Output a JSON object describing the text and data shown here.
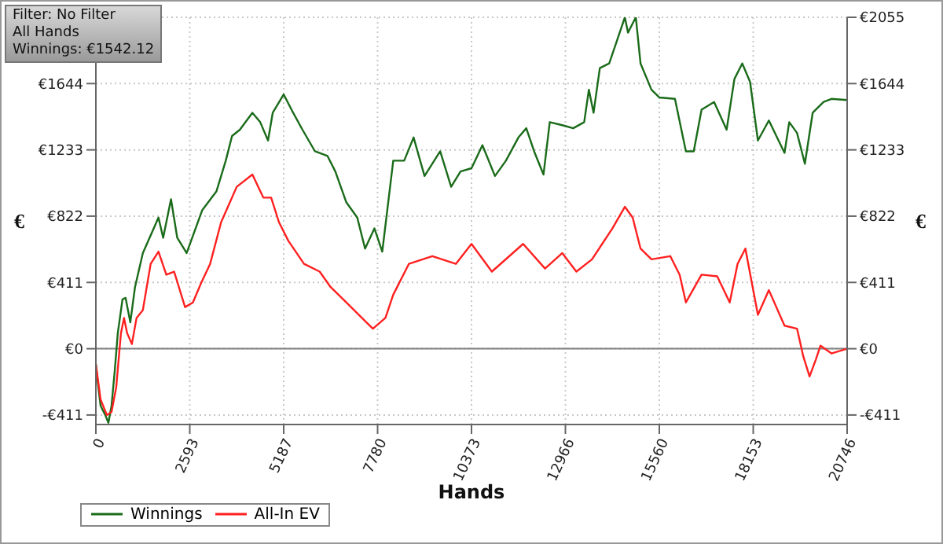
{
  "chart_data": {
    "type": "line",
    "xlabel": "Hands",
    "ylabel": "€",
    "y2label": "€",
    "annotations": [
      "Filter: No Filter",
      "All Hands",
      "Winnings: €1542.12"
    ],
    "xlim": [
      0,
      20746
    ],
    "xticks": [
      0,
      2593,
      5187,
      7780,
      10373,
      12966,
      15560,
      18153,
      20746
    ],
    "ylim": [
      -470,
      2055
    ],
    "yticks": [
      {
        "value": -411,
        "label": "-€411"
      },
      {
        "value": 0,
        "label": "€0"
      },
      {
        "value": 411,
        "label": "€411"
      },
      {
        "value": 822,
        "label": "€822"
      },
      {
        "value": 1233,
        "label": "€1233"
      },
      {
        "value": 1644,
        "label": "€1644"
      },
      {
        "value": 2055,
        "label": null
      }
    ],
    "y2lim": [
      -470,
      2055
    ],
    "y2ticks": [
      {
        "value": -411,
        "label": "-€411"
      },
      {
        "value": 0,
        "label": "€0"
      },
      {
        "value": 411,
        "label": "€411"
      },
      {
        "value": 822,
        "label": "€822"
      },
      {
        "value": 1233,
        "label": "€1233"
      },
      {
        "value": 1644,
        "label": "€1644"
      },
      {
        "value": 2055,
        "label": "€2055"
      }
    ],
    "grid": true,
    "legend": "bottom left",
    "marker": "none",
    "line_style": "solid",
    "ref_lines": [
      {
        "axis": "y",
        "value": 0,
        "color": "#808080"
      }
    ],
    "series": [
      {
        "name": "Winnings",
        "color": "#1a6b1a",
        "x": [
          0,
          43,
          130,
          259,
          346,
          432,
          519,
          605,
          735,
          821,
          951,
          1081,
          1297,
          1729,
          1858,
          2075,
          2247,
          2507,
          2939,
          3328,
          3587,
          3760,
          3976,
          4322,
          4538,
          4754,
          4884,
          5186,
          5403,
          5705,
          6051,
          6397,
          6613,
          6915,
          7218,
          7434,
          7693,
          7909,
          8212,
          8514,
          8774,
          9076,
          9508,
          9811,
          10070,
          10373,
          10675,
          11021,
          11324,
          11669,
          11886,
          12102,
          12361,
          12534,
          12880,
          13182,
          13485,
          13614,
          13744,
          13917,
          14176,
          14392,
          14608,
          14695,
          14911,
          15041,
          15343,
          15559,
          15991,
          16294,
          16510,
          16726,
          17072,
          17418,
          17634,
          17850,
          18066,
          18282,
          18585,
          19017,
          19147,
          19363,
          19579,
          19795,
          20097,
          20313,
          20746
        ],
        "values": [
          -96,
          -191,
          -354,
          -411,
          -459,
          -354,
          -143,
          96,
          306,
          315,
          163,
          382,
          593,
          813,
          688,
          927,
          688,
          593,
          860,
          975,
          1166,
          1319,
          1358,
          1463,
          1405,
          1291,
          1463,
          1577,
          1482,
          1358,
          1224,
          1195,
          1099,
          908,
          813,
          621,
          746,
          602,
          1166,
          1166,
          1310,
          1071,
          1224,
          1004,
          1099,
          1119,
          1262,
          1071,
          1166,
          1310,
          1367,
          1224,
          1080,
          1405,
          1386,
          1367,
          1405,
          1606,
          1463,
          1740,
          1769,
          1912,
          2055,
          1960,
          2055,
          1769,
          1606,
          1558,
          1549,
          1224,
          1224,
          1482,
          1530,
          1358,
          1673,
          1769,
          1654,
          1291,
          1415,
          1214,
          1405,
          1338,
          1147,
          1463,
          1530,
          1549,
          1542
        ]
      },
      {
        "name": "All-In EV",
        "color": "#ff2020",
        "x": [
          0,
          130,
          303,
          432,
          562,
          692,
          778,
          864,
          994,
          1124,
          1297,
          1513,
          1729,
          1945,
          2161,
          2463,
          2680,
          2896,
          3155,
          3458,
          3890,
          4322,
          4624,
          4840,
          5057,
          5316,
          5748,
          6180,
          6483,
          6915,
          7347,
          7650,
          7996,
          8212,
          8644,
          9292,
          9940,
          10373,
          10935,
          11799,
          12404,
          12880,
          13269,
          13701,
          14263,
          14608,
          14824,
          15041,
          15343,
          15862,
          16121,
          16294,
          16726,
          17158,
          17504,
          17720,
          17936,
          18282,
          18585,
          19017,
          19363,
          19536,
          19709,
          19882,
          20011,
          20313,
          20746
        ],
        "values": [
          -96,
          -315,
          -411,
          -392,
          -239,
          96,
          191,
          96,
          29,
          191,
          239,
          526,
          602,
          459,
          478,
          258,
          287,
          402,
          526,
          784,
          1004,
          1080,
          937,
          937,
          784,
          669,
          526,
          478,
          382,
          287,
          191,
          124,
          191,
          335,
          526,
          574,
          526,
          650,
          478,
          650,
          497,
          593,
          478,
          554,
          746,
          880,
          813,
          621,
          554,
          574,
          459,
          287,
          459,
          449,
          287,
          526,
          621,
          210,
          363,
          143,
          124,
          -48,
          -172,
          -67,
          19,
          -29,
          0
        ]
      }
    ]
  }
}
